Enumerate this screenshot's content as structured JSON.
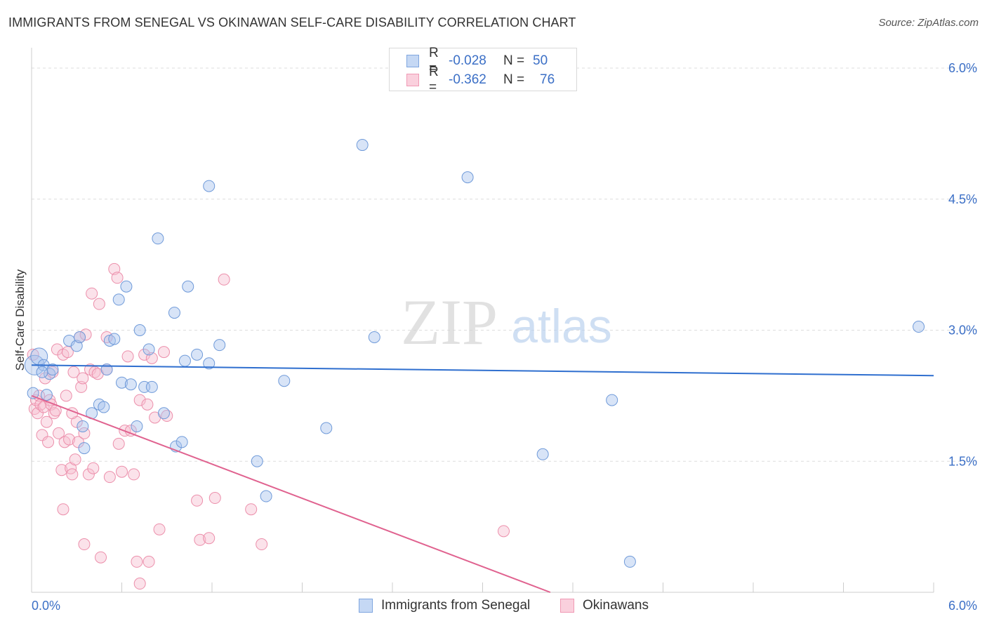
{
  "header": {
    "title": "IMMIGRANTS FROM SENEGAL VS OKINAWAN SELF-CARE DISABILITY CORRELATION CHART",
    "source": "Source: ZipAtlas.com"
  },
  "watermark": {
    "zip": "ZIP",
    "atlas": "atlas"
  },
  "legend": {
    "series1": {
      "r_label": "R =",
      "r_value": "-0.028",
      "n_label": "N =",
      "n_value": "50",
      "color": "#8fb3e8"
    },
    "series2": {
      "r_label": "R =",
      "r_value": "-0.362",
      "n_label": "N =",
      "n_value": "76",
      "color": "#f4a6be"
    }
  },
  "bottom_legend": {
    "series1_label": "Immigrants from Senegal",
    "series2_label": "Okinawans"
  },
  "colors": {
    "blue_fill": "#a8c4ee",
    "blue_stroke": "#6f9ad9",
    "blue_line": "#2f6fcf",
    "pink_fill": "#f7bfd0",
    "pink_stroke": "#ec8fab",
    "pink_line": "#e0628f",
    "axis_text": "#3b6fc6",
    "grid": "#dddddd"
  },
  "chart_data": {
    "type": "scatter",
    "title": "IMMIGRANTS FROM SENEGAL VS OKINAWAN SELF-CARE DISABILITY CORRELATION CHART",
    "xlabel": "",
    "ylabel": "Self-Care Disability",
    "xlim": [
      0,
      6.0
    ],
    "ylim": [
      0,
      6.0
    ],
    "x_tick_labels": [
      "0.0%",
      "6.0%"
    ],
    "y_ticks": [
      1.5,
      3.0,
      4.5,
      6.0
    ],
    "y_tick_labels": [
      "1.5%",
      "3.0%",
      "4.5%",
      "6.0%"
    ],
    "grid": true,
    "series": [
      {
        "name": "Immigrants from Senegal",
        "trend": [
          [
            0.0,
            2.6
          ],
          [
            6.0,
            2.48
          ]
        ],
        "points": [
          [
            0.02,
            2.6
          ],
          [
            0.05,
            2.7
          ],
          [
            0.08,
            2.6
          ],
          [
            0.1,
            2.26
          ],
          [
            0.12,
            2.5
          ],
          [
            0.14,
            2.55
          ],
          [
            0.25,
            2.88
          ],
          [
            0.3,
            2.82
          ],
          [
            0.32,
            2.92
          ],
          [
            0.34,
            1.9
          ],
          [
            0.35,
            1.65
          ],
          [
            0.4,
            2.05
          ],
          [
            0.45,
            2.15
          ],
          [
            0.48,
            2.12
          ],
          [
            0.5,
            2.55
          ],
          [
            0.52,
            2.88
          ],
          [
            0.55,
            2.9
          ],
          [
            0.58,
            3.35
          ],
          [
            0.6,
            2.4
          ],
          [
            0.63,
            3.5
          ],
          [
            0.66,
            2.38
          ],
          [
            0.7,
            1.9
          ],
          [
            0.72,
            3.0
          ],
          [
            0.75,
            2.35
          ],
          [
            0.78,
            2.78
          ],
          [
            0.8,
            2.35
          ],
          [
            0.84,
            4.05
          ],
          [
            0.88,
            2.05
          ],
          [
            0.95,
            3.2
          ],
          [
            0.96,
            1.67
          ],
          [
            1.0,
            1.72
          ],
          [
            1.02,
            2.65
          ],
          [
            1.04,
            3.5
          ],
          [
            1.1,
            2.72
          ],
          [
            1.18,
            2.62
          ],
          [
            1.18,
            4.65
          ],
          [
            1.25,
            2.83
          ],
          [
            1.5,
            1.5
          ],
          [
            1.56,
            1.1
          ],
          [
            1.68,
            2.42
          ],
          [
            1.96,
            1.88
          ],
          [
            2.2,
            5.12
          ],
          [
            2.28,
            2.92
          ],
          [
            2.9,
            4.75
          ],
          [
            3.4,
            1.58
          ],
          [
            3.86,
            2.2
          ],
          [
            3.98,
            0.35
          ],
          [
            5.9,
            3.04
          ],
          [
            0.01,
            2.28
          ],
          [
            0.07,
            2.52
          ]
        ]
      },
      {
        "name": "Okinawans",
        "trend": [
          [
            0.0,
            2.25
          ],
          [
            3.45,
            0.0
          ]
        ],
        "points": [
          [
            0.01,
            2.72
          ],
          [
            0.02,
            2.1
          ],
          [
            0.03,
            2.2
          ],
          [
            0.04,
            2.05
          ],
          [
            0.05,
            2.25
          ],
          [
            0.06,
            2.15
          ],
          [
            0.07,
            1.8
          ],
          [
            0.08,
            2.12
          ],
          [
            0.09,
            2.45
          ],
          [
            0.1,
            1.95
          ],
          [
            0.11,
            1.72
          ],
          [
            0.12,
            2.2
          ],
          [
            0.13,
            2.15
          ],
          [
            0.14,
            2.52
          ],
          [
            0.15,
            2.05
          ],
          [
            0.16,
            2.08
          ],
          [
            0.17,
            2.78
          ],
          [
            0.18,
            1.82
          ],
          [
            0.2,
            1.4
          ],
          [
            0.21,
            2.72
          ],
          [
            0.22,
            1.72
          ],
          [
            0.24,
            2.75
          ],
          [
            0.25,
            1.75
          ],
          [
            0.26,
            1.42
          ],
          [
            0.27,
            1.35
          ],
          [
            0.28,
            2.52
          ],
          [
            0.29,
            1.52
          ],
          [
            0.3,
            1.95
          ],
          [
            0.31,
            1.72
          ],
          [
            0.32,
            2.92
          ],
          [
            0.33,
            2.35
          ],
          [
            0.34,
            2.45
          ],
          [
            0.35,
            1.82
          ],
          [
            0.36,
            2.95
          ],
          [
            0.38,
            1.35
          ],
          [
            0.39,
            2.55
          ],
          [
            0.4,
            3.42
          ],
          [
            0.41,
            1.42
          ],
          [
            0.42,
            2.52
          ],
          [
            0.45,
            3.3
          ],
          [
            0.46,
            0.4
          ],
          [
            0.5,
            2.55
          ],
          [
            0.52,
            1.32
          ],
          [
            0.55,
            3.7
          ],
          [
            0.57,
            3.6
          ],
          [
            0.58,
            1.7
          ],
          [
            0.6,
            1.38
          ],
          [
            0.62,
            1.85
          ],
          [
            0.64,
            2.7
          ],
          [
            0.66,
            1.85
          ],
          [
            0.68,
            1.35
          ],
          [
            0.7,
            0.35
          ],
          [
            0.72,
            2.2
          ],
          [
            0.75,
            2.72
          ],
          [
            0.77,
            2.15
          ],
          [
            0.8,
            2.68
          ],
          [
            0.82,
            2.0
          ],
          [
            0.85,
            0.72
          ],
          [
            0.88,
            2.75
          ],
          [
            0.9,
            2.02
          ],
          [
            0.21,
            0.95
          ],
          [
            0.35,
            0.55
          ],
          [
            0.72,
            0.1
          ],
          [
            0.78,
            0.35
          ],
          [
            1.1,
            1.05
          ],
          [
            1.12,
            0.6
          ],
          [
            1.18,
            0.62
          ],
          [
            1.22,
            1.08
          ],
          [
            1.28,
            3.58
          ],
          [
            1.46,
            0.95
          ],
          [
            1.53,
            0.55
          ],
          [
            3.14,
            0.7
          ],
          [
            0.23,
            2.25
          ],
          [
            0.27,
            2.05
          ],
          [
            0.44,
            2.5
          ],
          [
            0.5,
            2.92
          ]
        ]
      }
    ]
  }
}
